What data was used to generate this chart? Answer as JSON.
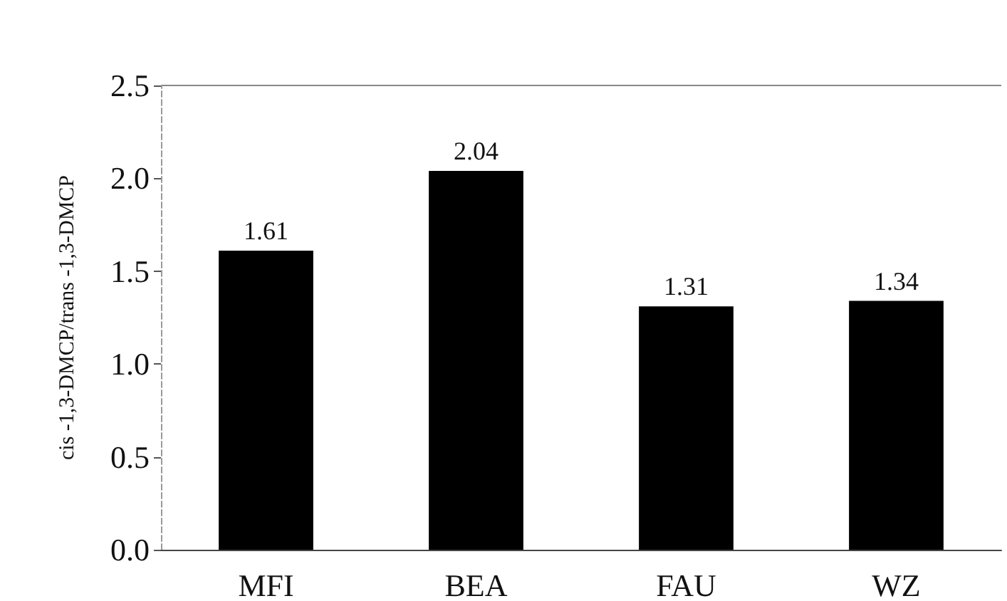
{
  "chart_data": {
    "type": "bar",
    "ylabel": "cis -1,3-DMCP/trans -1,3-DMCP",
    "categories": [
      "MFI",
      "BEA",
      "FAU",
      "WZ"
    ],
    "values": [
      1.61,
      2.04,
      1.31,
      1.34
    ],
    "color": "#000000",
    "ylim": [
      0,
      2.5
    ],
    "yticks": [
      {
        "value": 0,
        "label": "0.0"
      },
      {
        "value": 0.5,
        "label": "0.5"
      },
      {
        "value": 1,
        "label": "1.0"
      },
      {
        "value": 1.5,
        "label": "1.5"
      },
      {
        "value": 2,
        "label": "2.0"
      },
      {
        "value": 2.5,
        "label": "2.5"
      }
    ],
    "data_labels": true
  }
}
